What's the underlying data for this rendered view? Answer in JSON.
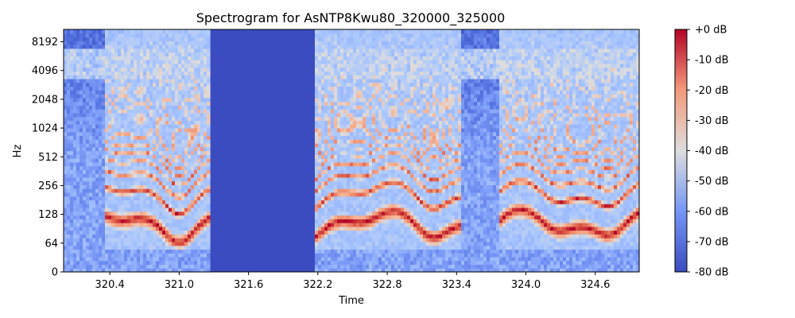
{
  "chart_data": {
    "type": "heatmap",
    "title": "Spectrogram for AsNTP8Kwu80_320000_325000",
    "xlabel": "Time",
    "ylabel": "Hz",
    "xlim": [
      320.0,
      324.98
    ],
    "x_ticks": [
      320.4,
      321.0,
      321.6,
      322.2,
      322.8,
      323.4,
      324.0,
      324.6
    ],
    "x_tick_labels": [
      "320.4",
      "321.0",
      "321.6",
      "322.2",
      "322.8",
      "323.4",
      "324.0",
      "324.6"
    ],
    "y_scale": "symlog",
    "ylim": [
      0,
      11025
    ],
    "y_ticks": [
      0,
      64,
      128,
      256,
      512,
      1024,
      2048,
      4096,
      8192
    ],
    "y_tick_labels": [
      "0",
      "64",
      "128",
      "256",
      "512",
      "1024",
      "2048",
      "4096",
      "8192"
    ],
    "colormap": "coolwarm",
    "colorbar": {
      "range_db": [
        -80,
        0
      ],
      "ticks": [
        0,
        -10,
        -20,
        -30,
        -40,
        -50,
        -60,
        -70,
        -80
      ],
      "tick_labels": [
        "+0 dB",
        "-10 dB",
        "-20 dB",
        "-30 dB",
        "-40 dB",
        "-50 dB",
        "-60 dB",
        "-70 dB",
        "-80 dB"
      ]
    },
    "silent_segments": [
      [
        321.27,
        322.16
      ]
    ],
    "speech_segments": [
      [
        320.0,
        321.27
      ],
      [
        322.16,
        324.98
      ]
    ],
    "grid": false,
    "colors": {
      "low": "#3b4cc0",
      "mid": "#dddddd",
      "high": "#b40426"
    }
  }
}
